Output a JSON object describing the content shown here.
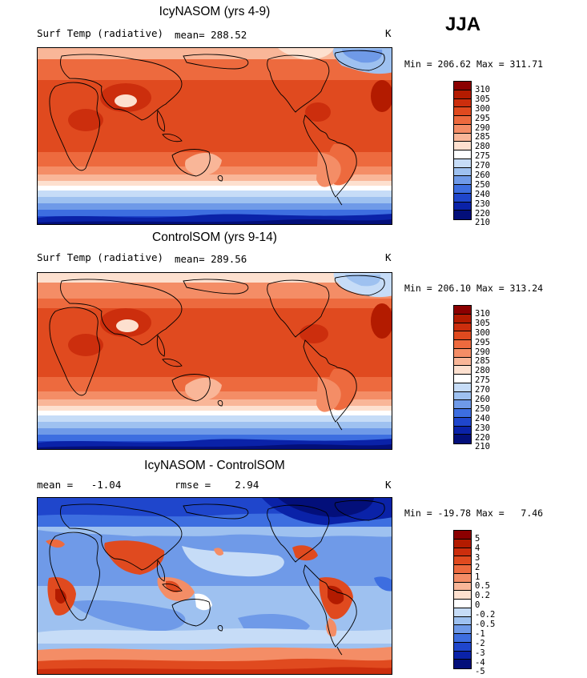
{
  "season": "JJA",
  "panels": [
    {
      "title": "IcyNASOM (yrs 4-9)",
      "left_label": "Surf Temp (radiative)",
      "center_label": "mean= 288.52",
      "units": "K",
      "minmax": "Min = 206.62 Max = 311.71",
      "colorbar_labels": [
        "310",
        "305",
        "300",
        "295",
        "290",
        "285",
        "280",
        "275",
        "270",
        "260",
        "250",
        "240",
        "230",
        "220",
        "210"
      ],
      "colorbar_colors": [
        "#8b0000",
        "#b31b00",
        "#cc2e0d",
        "#e04a1f",
        "#ed6a3e",
        "#f48d66",
        "#f9b698",
        "#fde0cf",
        "#ffffff",
        "#c6dcf7",
        "#9ec1f0",
        "#6f9ae8",
        "#3d6ee0",
        "#1f46cc",
        "#0a22a8",
        "#030f7a"
      ]
    },
    {
      "title": "ControlSOM (yrs 9-14)",
      "left_label": "Surf Temp (radiative)",
      "center_label": "mean= 289.56",
      "units": "K",
      "minmax": "Min = 206.10 Max = 313.24",
      "colorbar_labels": [
        "310",
        "305",
        "300",
        "295",
        "290",
        "285",
        "280",
        "275",
        "270",
        "260",
        "250",
        "240",
        "230",
        "220",
        "210"
      ],
      "colorbar_colors": [
        "#8b0000",
        "#b31b00",
        "#cc2e0d",
        "#e04a1f",
        "#ed6a3e",
        "#f48d66",
        "#f9b698",
        "#fde0cf",
        "#ffffff",
        "#c6dcf7",
        "#9ec1f0",
        "#6f9ae8",
        "#3d6ee0",
        "#1f46cc",
        "#0a22a8",
        "#030f7a"
      ]
    },
    {
      "title": "IcyNASOM - ControlSOM",
      "left_label": "mean =   -1.04",
      "center_label": "rmse =    2.94",
      "units": "K",
      "minmax": "Min = -19.78 Max =   7.46",
      "colorbar_labels": [
        "5",
        "4",
        "3",
        "2",
        "1",
        "0.5",
        "0.2",
        "0",
        "-0.2",
        "-0.5",
        "-1",
        "-2",
        "-3",
        "-4",
        "-5"
      ],
      "colorbar_colors": [
        "#8b0000",
        "#b31b00",
        "#cc2e0d",
        "#e04a1f",
        "#ed6a3e",
        "#f48d66",
        "#f9b698",
        "#fde0cf",
        "#ffffff",
        "#c6dcf7",
        "#9ec1f0",
        "#6f9ae8",
        "#3d6ee0",
        "#1f46cc",
        "#0a22a8",
        "#030f7a"
      ]
    }
  ]
}
